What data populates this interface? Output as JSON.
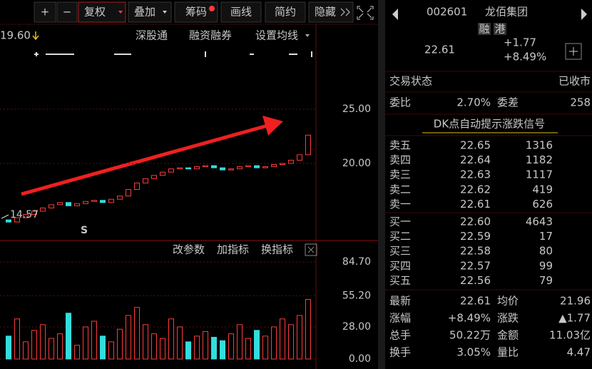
{
  "toolbar": {
    "buttons": [
      "+",
      "−",
      "复权",
      "叠加",
      "筹码",
      "画线",
      "简约",
      "隐藏"
    ]
  },
  "price_chart": {
    "header": {
      "price": "19.60",
      "links": [
        "深股通",
        "融资融券",
        "设置均线"
      ]
    },
    "ylim": [
      13.03,
      32.43
    ],
    "yticks": [
      {
        "value": 25,
        "label": "25.00"
      },
      {
        "value": 20,
        "label": "20.00"
      }
    ],
    "low_label": "14.57",
    "signal": "S",
    "open": [
      14.8,
      14.6,
      15.0,
      15.3,
      15.6,
      15.9,
      16.2,
      16.4,
      16.1,
      16.3,
      16.5,
      16.6,
      16.4,
      16.7,
      17.0,
      17.6,
      18.2,
      18.6,
      18.9,
      19.2,
      19.5,
      19.6,
      19.5,
      19.7,
      19.8,
      19.6,
      19.4,
      19.5,
      19.7,
      19.8,
      19.6,
      19.7,
      19.9,
      20.0,
      20.3,
      20.8
    ],
    "close": [
      14.6,
      15.0,
      15.3,
      15.6,
      15.9,
      16.2,
      16.4,
      16.1,
      16.3,
      16.5,
      16.6,
      16.4,
      16.7,
      17.0,
      17.6,
      18.2,
      18.6,
      18.9,
      19.2,
      19.5,
      19.6,
      19.5,
      19.7,
      19.8,
      19.6,
      19.4,
      19.5,
      19.7,
      19.8,
      19.6,
      19.7,
      19.9,
      20.0,
      20.3,
      20.8,
      22.61
    ]
  },
  "volume_chart": {
    "tools": [
      "改参数",
      "加指标",
      "换指标"
    ],
    "ylim": [
      0,
      84.7
    ],
    "yticks": [
      {
        "value": 84.7,
        "label": "84.70"
      },
      {
        "value": 55.2,
        "label": "55.20"
      },
      {
        "value": 28,
        "label": "28.00"
      },
      {
        "value": 0,
        "label": "0.00"
      }
    ],
    "values": [
      20,
      35,
      15,
      25,
      30,
      18,
      22,
      40,
      12,
      28,
      33,
      20,
      15,
      26,
      38,
      45,
      30,
      22,
      18,
      35,
      28,
      15,
      20,
      24,
      19,
      16,
      22,
      30,
      18,
      25,
      20,
      28,
      35,
      30,
      38,
      52
    ]
  },
  "quote": {
    "code": "002601",
    "name": "龙佰集团",
    "tags": [
      "融",
      "港"
    ],
    "price": "22.61",
    "change": "+1.77",
    "change_pct": "+8.49%",
    "status_label": "交易状态",
    "status": "已收市",
    "ratio_label": "委比",
    "ratio": "2.70%",
    "diff_label": "委差",
    "diff": "258",
    "signal_link": "DK点自动提示涨跌信号",
    "sell": [
      [
        "卖五",
        "22.65",
        "1316"
      ],
      [
        "卖四",
        "22.64",
        "1182"
      ],
      [
        "卖三",
        "22.63",
        "1117"
      ],
      [
        "卖二",
        "22.62",
        "419"
      ],
      [
        "卖一",
        "22.61",
        "626"
      ]
    ],
    "buy": [
      [
        "买一",
        "22.60",
        "4643"
      ],
      [
        "买二",
        "22.59",
        "17"
      ],
      [
        "买三",
        "22.58",
        "80"
      ],
      [
        "买四",
        "22.57",
        "99"
      ],
      [
        "买五",
        "22.56",
        "79"
      ]
    ],
    "stats": [
      [
        "最新",
        "22.61",
        "均价",
        "21.96"
      ],
      [
        "涨幅",
        "+8.49%",
        "涨跌",
        "▲1.77"
      ],
      [
        "总手",
        "50.22万",
        "金额",
        "11.03亿"
      ],
      [
        "换手",
        "3.05%",
        "量比",
        "4.47"
      ]
    ]
  }
}
